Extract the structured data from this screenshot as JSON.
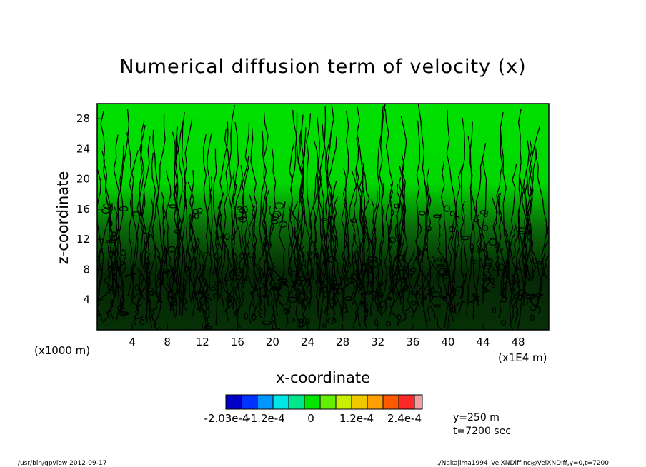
{
  "chart_data": {
    "type": "heatmap",
    "title": "Numerical diffusion term of velocity (x)",
    "xlabel": "x-coordinate",
    "ylabel": "z-coordinate",
    "x_unit_note": "(x1E4 m)",
    "y_unit_note": "(x1000 m)",
    "xlim": [
      0,
      51.5
    ],
    "ylim": [
      0,
      30
    ],
    "x_ticks": [
      "4",
      "8",
      "12",
      "16",
      "20",
      "24",
      "28",
      "32",
      "36",
      "40",
      "44",
      "48"
    ],
    "y_ticks": [
      "4",
      "8",
      "12",
      "16",
      "20",
      "24",
      "28"
    ],
    "colorbar": {
      "colors": [
        "#0000c8",
        "#0032ff",
        "#0096ff",
        "#00e6e6",
        "#00e68c",
        "#00e600",
        "#64f000",
        "#c8f000",
        "#f0c800",
        "#ffa000",
        "#ff5a00",
        "#ff2828",
        "#f0a0a0"
      ],
      "labels": [
        "-2.03e-4",
        "-1.2e-4",
        "0",
        "1.2e-4",
        "2.4e-4"
      ]
    },
    "annotations": [
      "y=250 m",
      "t=7200 sec"
    ]
  },
  "footer": {
    "left": "/usr/bin/gpview  2012-09-17",
    "right": "./Nakajima1994_VelXNDiff.nc@VelXNDiff,y=0,t=7200"
  }
}
